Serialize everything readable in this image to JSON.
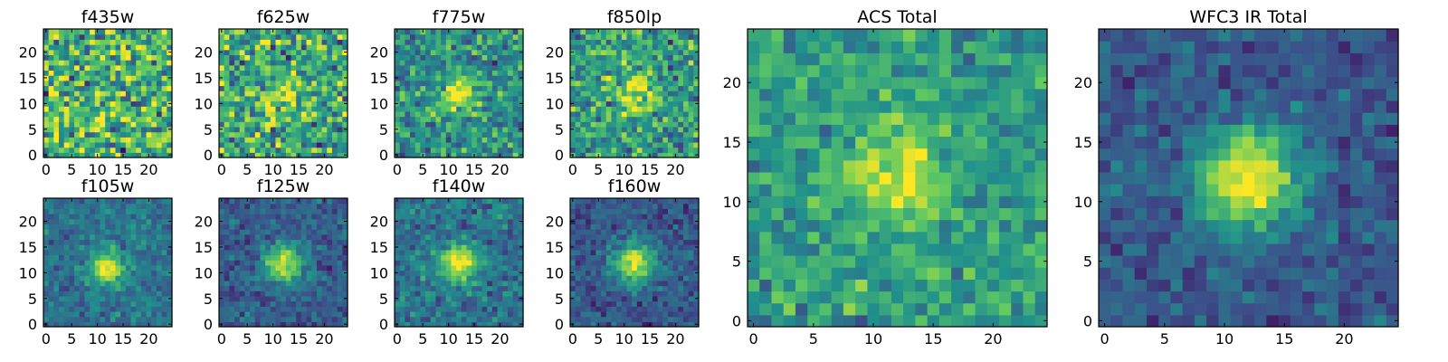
{
  "chart_data": {
    "type": "heatmap",
    "colormap": "viridis",
    "colormap_stops": [
      "#440154",
      "#3b528b",
      "#21918c",
      "#5ec962",
      "#fde725"
    ],
    "grid_size": 25,
    "xlim": [
      -0.5,
      24.5
    ],
    "ylim": [
      -0.5,
      24.5
    ],
    "panels": [
      {
        "id": "f435w",
        "title": "f435w",
        "xticks": [
          0,
          5,
          10,
          15,
          20
        ],
        "yticks": [
          0,
          5,
          10,
          15,
          20
        ],
        "source": {
          "center": [
            12,
            12
          ],
          "sigma": 3.0,
          "peak": 0.0
        },
        "noise": 0.85,
        "background": 0.65,
        "seed": 11
      },
      {
        "id": "f625w",
        "title": "f625w",
        "xticks": [
          0,
          5,
          10,
          15,
          20
        ],
        "yticks": [
          0,
          5,
          10,
          15,
          20
        ],
        "source": {
          "center": [
            12,
            11
          ],
          "sigma": 2.8,
          "peak": 0.25
        },
        "noise": 0.75,
        "background": 0.6,
        "seed": 23
      },
      {
        "id": "f775w",
        "title": "f775w",
        "xticks": [
          0,
          5,
          10,
          15,
          20
        ],
        "yticks": [
          0,
          5,
          10,
          15,
          20
        ],
        "source": {
          "center": [
            12,
            12
          ],
          "sigma": 2.4,
          "peak": 0.5
        },
        "noise": 0.55,
        "background": 0.5,
        "seed": 37
      },
      {
        "id": "f850lp",
        "title": "f850lp",
        "xticks": [
          0,
          5,
          10,
          15,
          20
        ],
        "yticks": [
          0,
          5,
          10,
          15,
          20
        ],
        "source": {
          "center": [
            12,
            12
          ],
          "sigma": 2.4,
          "peak": 0.45
        },
        "noise": 0.6,
        "background": 0.55,
        "seed": 41
      },
      {
        "id": "f105w",
        "title": "f105w",
        "xticks": [
          0,
          5,
          10,
          15,
          20
        ],
        "yticks": [
          0,
          5,
          10,
          15,
          20
        ],
        "source": {
          "center": [
            12,
            11
          ],
          "sigma": 2.2,
          "peak": 0.65
        },
        "noise": 0.3,
        "background": 0.38,
        "seed": 53
      },
      {
        "id": "f125w",
        "title": "f125w",
        "xticks": [
          0,
          5,
          10,
          15,
          20
        ],
        "yticks": [
          0,
          5,
          10,
          15,
          20
        ],
        "source": {
          "center": [
            12,
            12
          ],
          "sigma": 2.6,
          "peak": 0.65
        },
        "noise": 0.3,
        "background": 0.3,
        "seed": 67
      },
      {
        "id": "f140w",
        "title": "f140w",
        "xticks": [
          0,
          5,
          10,
          15,
          20
        ],
        "yticks": [
          0,
          5,
          10,
          15,
          20
        ],
        "source": {
          "center": [
            12,
            12
          ],
          "sigma": 2.6,
          "peak": 0.6
        },
        "noise": 0.35,
        "background": 0.38,
        "seed": 71
      },
      {
        "id": "f160w",
        "title": "f160w",
        "xticks": [
          0,
          5,
          10,
          15,
          20
        ],
        "yticks": [
          0,
          5,
          10,
          15,
          20
        ],
        "source": {
          "center": [
            12,
            12
          ],
          "sigma": 2.8,
          "peak": 0.65
        },
        "noise": 0.3,
        "background": 0.28,
        "seed": 83
      },
      {
        "id": "acs-total",
        "title": "ACS Total",
        "xticks": [
          0,
          5,
          10,
          15,
          20
        ],
        "yticks": [
          0,
          5,
          10,
          15,
          20
        ],
        "source": {
          "center": [
            12,
            12
          ],
          "sigma": 2.6,
          "peak": 0.42
        },
        "noise": 0.4,
        "background": 0.55,
        "seed": 97
      },
      {
        "id": "wfc3-ir-total",
        "title": "WFC3 IR Total",
        "xticks": [
          0,
          5,
          10,
          15,
          20
        ],
        "yticks": [
          0,
          5,
          10,
          15,
          20
        ],
        "source": {
          "center": [
            12,
            12
          ],
          "sigma": 3.0,
          "peak": 0.75
        },
        "noise": 0.28,
        "background": 0.28,
        "seed": 101
      }
    ]
  }
}
